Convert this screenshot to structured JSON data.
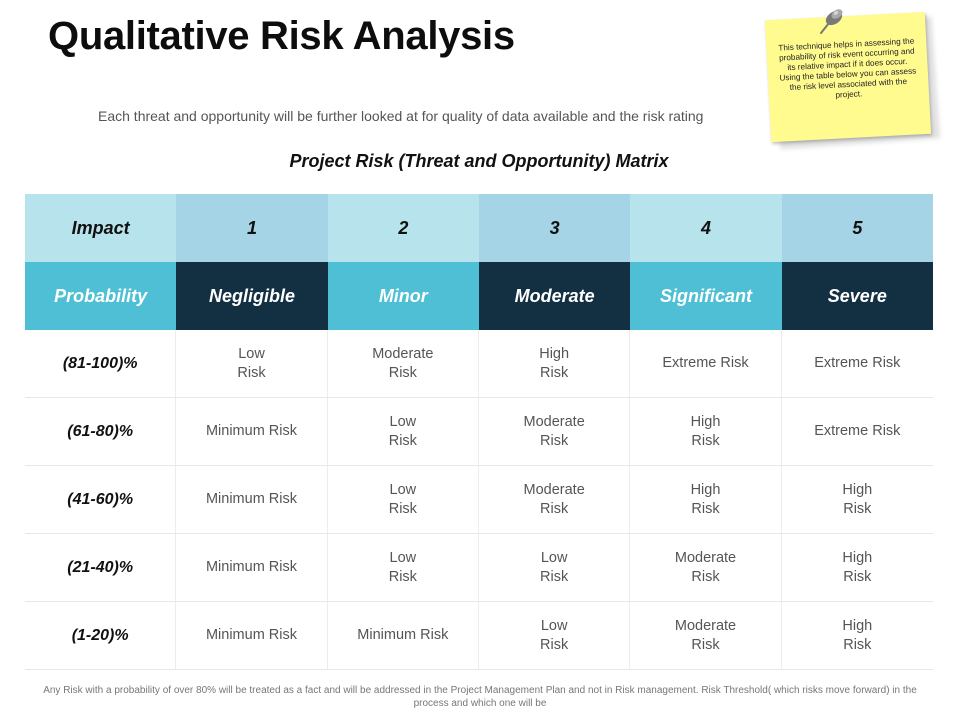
{
  "title": "Qualitative Risk Analysis",
  "intro": "Each threat and opportunity will be further looked at for quality of data available and the risk rating",
  "subtitle": "Project Risk (Threat and Opportunity) Matrix",
  "note": "This technique helps in assessing the probability of risk event occurring and its relative impact if it does occur. Using the table below you can assess the risk level associated with the project.",
  "icons": {
    "pin": "pushpin-icon"
  },
  "colors": {
    "impact_light": "#b6e3ec",
    "impact_dark": "#a4d4e6",
    "prob_teal": "#4ebfd4",
    "prob_navy": "#132f42",
    "note_yellow": "#fffb8f"
  },
  "matrix": {
    "impact_row": [
      "Impact",
      "1",
      "2",
      "3",
      "4",
      "5"
    ],
    "probability_row": [
      "Probability",
      "Negligible",
      "Minor",
      "Moderate",
      "Significant",
      "Severe"
    ],
    "rows": [
      {
        "label": "(81-100)%",
        "cells": [
          "Low\nRisk",
          "Moderate\nRisk",
          "High\nRisk",
          "Extreme Risk",
          "Extreme Risk"
        ]
      },
      {
        "label": "(61-80)%",
        "cells": [
          "Minimum Risk",
          "Low\nRisk",
          "Moderate\nRisk",
          "High\nRisk",
          "Extreme Risk"
        ]
      },
      {
        "label": "(41-60)%",
        "cells": [
          "Minimum Risk",
          "Low\nRisk",
          "Moderate\nRisk",
          "High\nRisk",
          "High\nRisk"
        ]
      },
      {
        "label": "(21-40)%",
        "cells": [
          "Minimum Risk",
          "Low\nRisk",
          "Low\nRisk",
          "Moderate\nRisk",
          "High\nRisk"
        ]
      },
      {
        "label": "(1-20)%",
        "cells": [
          "Minimum Risk",
          "Minimum Risk",
          "Low\nRisk",
          "Moderate\nRisk",
          "High\nRisk"
        ]
      }
    ]
  },
  "footer": "Any Risk with a probability of over 80% will be treated as a fact and will be addressed in the Project Management Plan and not in Risk management. Risk Threshold( which risks move forward) in the process and which one will be"
}
